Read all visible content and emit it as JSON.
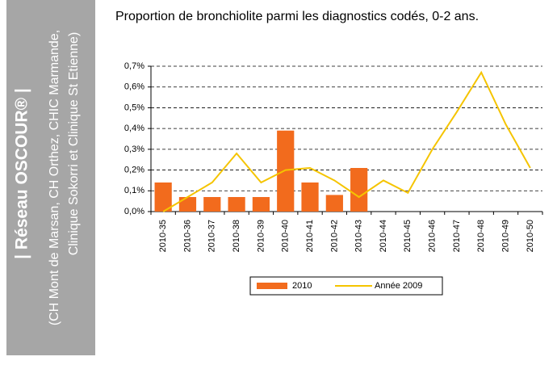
{
  "sidebar": {
    "title": "| Réseau OSCOUR® |",
    "line1": "(CH Mont de Marsan, CH Orthez, CHIC Marmande,",
    "line2": "Clinique Sokorri et Clinique St Etienne)"
  },
  "chart_data": {
    "type": "bar",
    "title": "Proportion de bronchiolite parmi les diagnostics codés, 0-2 ans.",
    "categories": [
      "2010-35",
      "2010-36",
      "2010-37",
      "2010-38",
      "2010-39",
      "2010-40",
      "2010-41",
      "2010-42",
      "2010-43",
      "2010-44",
      "2010-45",
      "2010-46",
      "2010-47",
      "2010-48",
      "2010-49",
      "2010-50"
    ],
    "series": [
      {
        "name": "2010",
        "type": "bar",
        "color": "#f26b1d",
        "values": [
          0.14,
          0.07,
          0.07,
          0.07,
          0.07,
          0.39,
          0.14,
          0.08,
          0.21,
          null,
          null,
          null,
          null,
          null,
          null,
          null
        ]
      },
      {
        "name": "Année 2009",
        "type": "line",
        "color": "#f5c400",
        "values": [
          0.0,
          0.07,
          0.14,
          0.28,
          0.14,
          0.2,
          0.21,
          0.15,
          0.07,
          0.15,
          0.09,
          0.3,
          0.48,
          0.67,
          0.42,
          0.21
        ]
      }
    ],
    "ylim": [
      0,
      0.7
    ],
    "yticks": [
      {
        "value": 0,
        "label": "0,0%"
      },
      {
        "value": 0.1,
        "label": "0,1%"
      },
      {
        "value": 0.2,
        "label": "0,2%"
      },
      {
        "value": 0.3,
        "label": "0,3%"
      },
      {
        "value": 0.4,
        "label": "0,4%"
      },
      {
        "value": 0.5,
        "label": "0,5%"
      },
      {
        "value": 0.6,
        "label": "0,6%"
      },
      {
        "value": 0.7,
        "label": "0,7%"
      }
    ],
    "grid": true
  }
}
